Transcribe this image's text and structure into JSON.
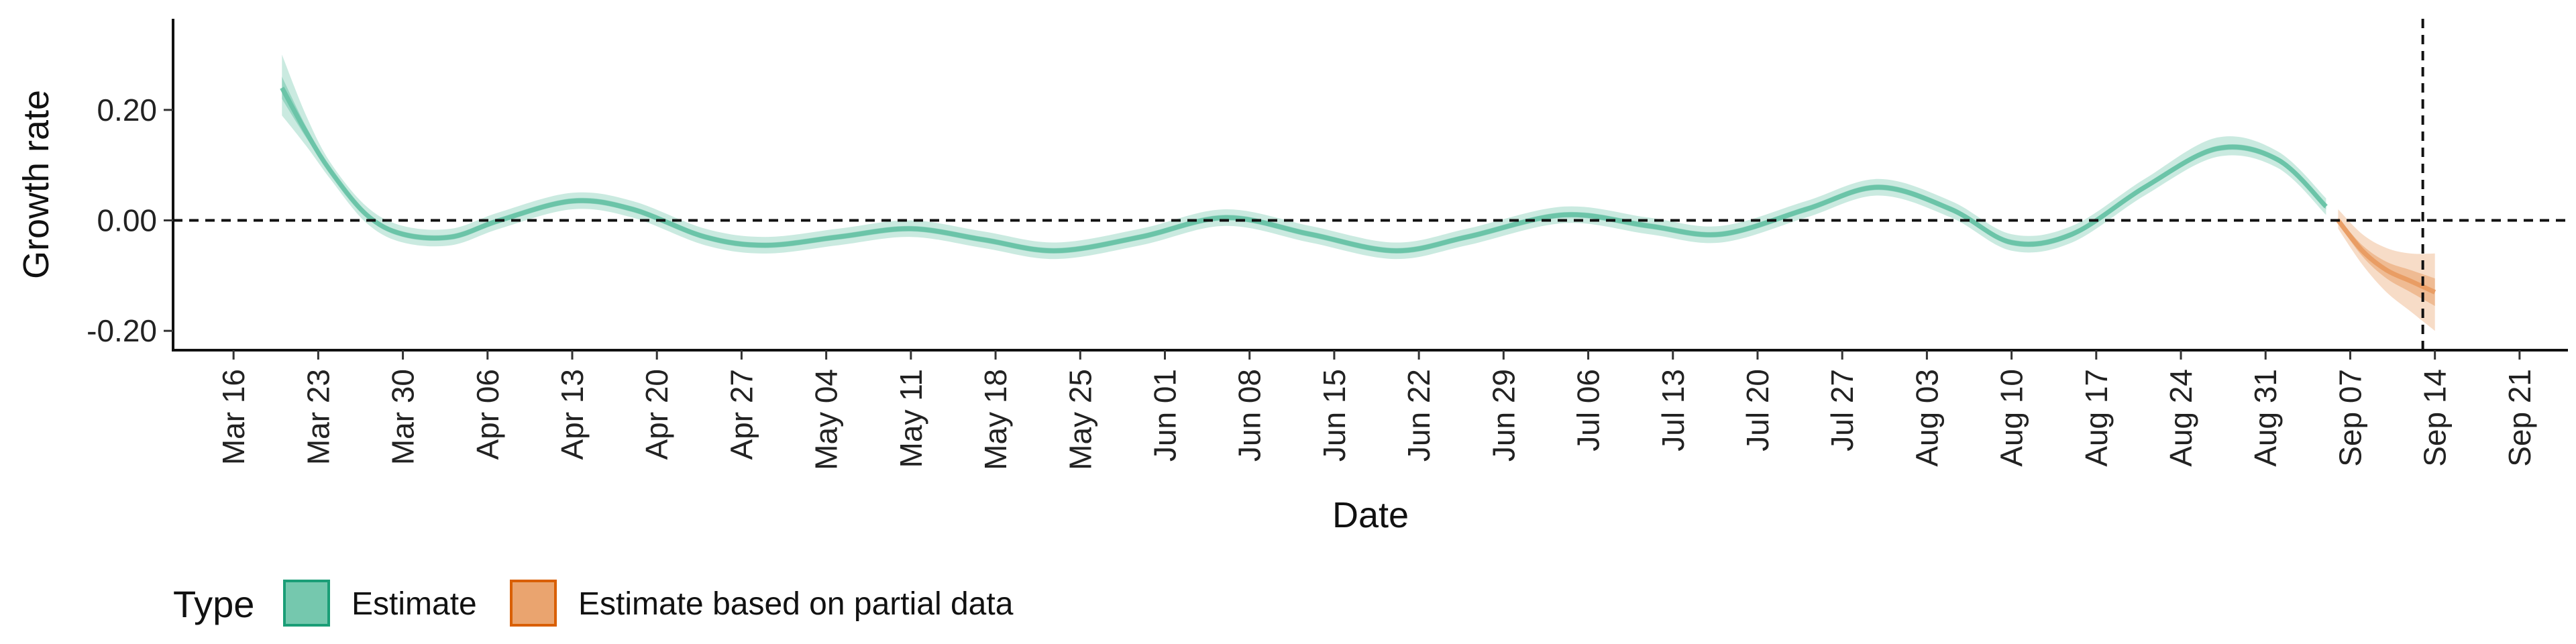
{
  "chart_data": {
    "type": "line",
    "xlabel": "Date",
    "ylabel": "Growth rate",
    "x_tick_labels": [
      "Mar 16",
      "Mar 23",
      "Mar 30",
      "Apr 06",
      "Apr 13",
      "Apr 20",
      "Apr 27",
      "May 04",
      "May 11",
      "May 18",
      "May 25",
      "Jun 01",
      "Jun 08",
      "Jun 15",
      "Jun 22",
      "Jun 29",
      "Jul 06",
      "Jul 13",
      "Jul 20",
      "Jul 27",
      "Aug 03",
      "Aug 10",
      "Aug 17",
      "Aug 24",
      "Aug 31",
      "Sep 07",
      "Sep 14",
      "Sep 21"
    ],
    "x_tick_dates": [
      "2020-03-16",
      "2020-03-23",
      "2020-03-30",
      "2020-04-06",
      "2020-04-13",
      "2020-04-20",
      "2020-04-27",
      "2020-05-04",
      "2020-05-11",
      "2020-05-18",
      "2020-05-25",
      "2020-06-01",
      "2020-06-08",
      "2020-06-15",
      "2020-06-22",
      "2020-06-29",
      "2020-07-06",
      "2020-07-13",
      "2020-07-20",
      "2020-07-27",
      "2020-08-03",
      "2020-08-10",
      "2020-08-17",
      "2020-08-24",
      "2020-08-31",
      "2020-09-07",
      "2020-09-14",
      "2020-09-21"
    ],
    "xlim": [
      "2020-03-11",
      "2020-09-25"
    ],
    "y_tick_labels": [
      "0.20",
      "0.00",
      "-0.20"
    ],
    "y_ticks": [
      0.2,
      0.0,
      -0.2
    ],
    "ylim": [
      -0.235,
      0.365
    ],
    "reference_lines": {
      "horizontal_y": 0.0,
      "vertical_x": "2020-09-13",
      "style": "dashed"
    },
    "grid": false,
    "legend": {
      "title": "Type",
      "position": "bottom-left",
      "entries": [
        {
          "label": "Estimate",
          "fill": "#66c2a5",
          "stroke": "#1b9e77"
        },
        {
          "label": "Estimate based on partial data",
          "fill": "#e89a5f",
          "stroke": "#d95f02"
        }
      ]
    },
    "series": [
      {
        "name": "Estimate",
        "color": "#1b9e77",
        "points": [
          {
            "x": "2020-03-20",
            "median": 0.24,
            "lo50": 0.22,
            "hi50": 0.26,
            "lo90": 0.19,
            "hi90": 0.3
          },
          {
            "x": "2020-03-22",
            "median": 0.16,
            "lo50": 0.15,
            "hi50": 0.17,
            "lo90": 0.135,
            "hi90": 0.19
          },
          {
            "x": "2020-03-24",
            "median": 0.09,
            "lo50": 0.085,
            "hi50": 0.095,
            "lo90": 0.075,
            "hi90": 0.105
          },
          {
            "x": "2020-03-27",
            "median": 0.01,
            "lo50": 0.005,
            "hi50": 0.015,
            "lo90": -0.005,
            "hi90": 0.025
          },
          {
            "x": "2020-03-30",
            "median": -0.025,
            "lo50": -0.03,
            "hi50": -0.02,
            "lo90": -0.04,
            "hi90": -0.01
          },
          {
            "x": "2020-04-03",
            "median": -0.03,
            "lo50": -0.035,
            "hi50": -0.025,
            "lo90": -0.045,
            "hi90": -0.015
          },
          {
            "x": "2020-04-07",
            "median": 0.0,
            "lo50": -0.005,
            "hi50": 0.005,
            "lo90": -0.015,
            "hi90": 0.015
          },
          {
            "x": "2020-04-13",
            "median": 0.035,
            "lo50": 0.03,
            "hi50": 0.04,
            "lo90": 0.02,
            "hi90": 0.05
          },
          {
            "x": "2020-04-18",
            "median": 0.02,
            "lo50": 0.015,
            "hi50": 0.025,
            "lo90": 0.005,
            "hi90": 0.035
          },
          {
            "x": "2020-04-24",
            "median": -0.03,
            "lo50": -0.035,
            "hi50": -0.025,
            "lo90": -0.045,
            "hi90": -0.015
          },
          {
            "x": "2020-04-29",
            "median": -0.045,
            "lo50": -0.05,
            "hi50": -0.04,
            "lo90": -0.06,
            "hi90": -0.03
          },
          {
            "x": "2020-05-05",
            "median": -0.03,
            "lo50": -0.035,
            "hi50": -0.025,
            "lo90": -0.045,
            "hi90": -0.015
          },
          {
            "x": "2020-05-11",
            "median": -0.015,
            "lo50": -0.02,
            "hi50": -0.01,
            "lo90": -0.03,
            "hi90": 0.0
          },
          {
            "x": "2020-05-17",
            "median": -0.035,
            "lo50": -0.04,
            "hi50": -0.03,
            "lo90": -0.05,
            "hi90": -0.02
          },
          {
            "x": "2020-05-23",
            "median": -0.055,
            "lo50": -0.06,
            "hi50": -0.05,
            "lo90": -0.07,
            "hi90": -0.04
          },
          {
            "x": "2020-05-30",
            "median": -0.03,
            "lo50": -0.035,
            "hi50": -0.025,
            "lo90": -0.045,
            "hi90": -0.015
          },
          {
            "x": "2020-06-06",
            "median": 0.005,
            "lo50": 0.0,
            "hi50": 0.01,
            "lo90": -0.01,
            "hi90": 0.02
          },
          {
            "x": "2020-06-13",
            "median": -0.025,
            "lo50": -0.03,
            "hi50": -0.02,
            "lo90": -0.04,
            "hi90": -0.01
          },
          {
            "x": "2020-06-20",
            "median": -0.055,
            "lo50": -0.06,
            "hi50": -0.05,
            "lo90": -0.07,
            "hi90": -0.04
          },
          {
            "x": "2020-06-26",
            "median": -0.03,
            "lo50": -0.035,
            "hi50": -0.025,
            "lo90": -0.045,
            "hi90": -0.015
          },
          {
            "x": "2020-07-04",
            "median": 0.01,
            "lo50": 0.005,
            "hi50": 0.015,
            "lo90": -0.005,
            "hi90": 0.025
          },
          {
            "x": "2020-07-11",
            "median": -0.01,
            "lo50": -0.015,
            "hi50": -0.005,
            "lo90": -0.025,
            "hi90": 0.005
          },
          {
            "x": "2020-07-17",
            "median": -0.025,
            "lo50": -0.03,
            "hi50": -0.02,
            "lo90": -0.04,
            "hi90": -0.01
          },
          {
            "x": "2020-07-24",
            "median": 0.02,
            "lo50": 0.015,
            "hi50": 0.025,
            "lo90": 0.005,
            "hi90": 0.035
          },
          {
            "x": "2020-07-30",
            "median": 0.06,
            "lo50": 0.055,
            "hi50": 0.065,
            "lo90": 0.045,
            "hi90": 0.075
          },
          {
            "x": "2020-08-05",
            "median": 0.02,
            "lo50": 0.015,
            "hi50": 0.025,
            "lo90": 0.005,
            "hi90": 0.035
          },
          {
            "x": "2020-08-10",
            "median": -0.04,
            "lo50": -0.045,
            "hi50": -0.035,
            "lo90": -0.055,
            "hi90": -0.025
          },
          {
            "x": "2020-08-15",
            "median": -0.025,
            "lo50": -0.03,
            "hi50": -0.02,
            "lo90": -0.04,
            "hi90": -0.01
          },
          {
            "x": "2020-08-21",
            "median": 0.06,
            "lo50": 0.055,
            "hi50": 0.065,
            "lo90": 0.045,
            "hi90": 0.075
          },
          {
            "x": "2020-08-27",
            "median": 0.13,
            "lo50": 0.125,
            "hi50": 0.135,
            "lo90": 0.115,
            "hi90": 0.15
          },
          {
            "x": "2020-09-01",
            "median": 0.11,
            "lo50": 0.105,
            "hi50": 0.115,
            "lo90": 0.095,
            "hi90": 0.125
          },
          {
            "x": "2020-09-05",
            "median": 0.025,
            "lo50": 0.02,
            "hi50": 0.03,
            "lo90": 0.01,
            "hi90": 0.04
          }
        ]
      },
      {
        "name": "Estimate based on partial data",
        "color": "#d95f02",
        "points": [
          {
            "x": "2020-09-06",
            "median": 0.0,
            "lo50": -0.005,
            "hi50": 0.005,
            "lo90": -0.015,
            "hi90": 0.02
          },
          {
            "x": "2020-09-08",
            "median": -0.055,
            "lo50": -0.065,
            "hi50": -0.045,
            "lo90": -0.08,
            "hi90": -0.025
          },
          {
            "x": "2020-09-10",
            "median": -0.09,
            "lo50": -0.105,
            "hi50": -0.075,
            "lo90": -0.13,
            "hi90": -0.05
          },
          {
            "x": "2020-09-12",
            "median": -0.11,
            "lo50": -0.13,
            "hi50": -0.09,
            "lo90": -0.165,
            "hi90": -0.06
          },
          {
            "x": "2020-09-14",
            "median": -0.13,
            "lo50": -0.155,
            "hi50": -0.105,
            "lo90": -0.2,
            "hi90": -0.06
          }
        ]
      }
    ]
  }
}
